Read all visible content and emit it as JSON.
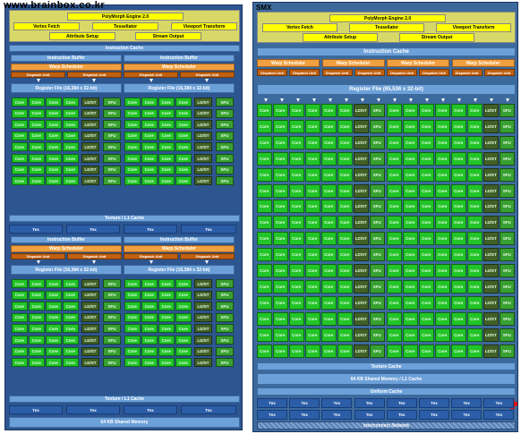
{
  "watermark": "www.brainbox.co.kr",
  "left": {
    "polymorph_title": "PolyMorph Engine 2.0",
    "polymorph_units": [
      "Vertex Fetch",
      "Tessellator",
      "Viewport Transform"
    ],
    "polymorph_units2": [
      "Attribute Setup",
      "Stream Output"
    ],
    "instruction_cache": "Instruction Cache",
    "block": {
      "instruction_buffer": "Instruction Buffer",
      "warp_scheduler": "Warp Scheduler",
      "dispatch_unit": "Dispatch Unit",
      "register_file": "Register File (16,384 x 32-bit)",
      "unit_labels": {
        "core": "Core",
        "ldst": "LD/ST",
        "sfu": "SFU"
      }
    },
    "texture_l1": "Texture / L1 Cache",
    "tex_label": "Tex",
    "l1_cache": "Texture / L1 Cache",
    "shared_memory": "64 KB Shared Memory"
  },
  "right": {
    "title": "SMX",
    "polymorph_title": "PolyMorph Engine 2.0",
    "polymorph_units": [
      "Vertex Fetch",
      "Tessellator",
      "Viewport Transform"
    ],
    "polymorph_units2": [
      "Attribute Setup",
      "Stream Output"
    ],
    "instruction_cache": "Instruction Cache",
    "warp_scheduler": "Warp Scheduler",
    "dispatch_unit": "Dispatch Unit",
    "register_file": "Register File (65,536 x 32-bit)",
    "unit_labels": {
      "core": "Core",
      "ldst": "LD/ST",
      "sfu": "SFU"
    },
    "texture_cache": "Texture Cache",
    "shared_memory": "64 KB Shared Memory / L1 Cache",
    "uniform_cache": "Uniform Cache",
    "tex_label": "Tex",
    "interconnect": "Interconnect Network"
  }
}
